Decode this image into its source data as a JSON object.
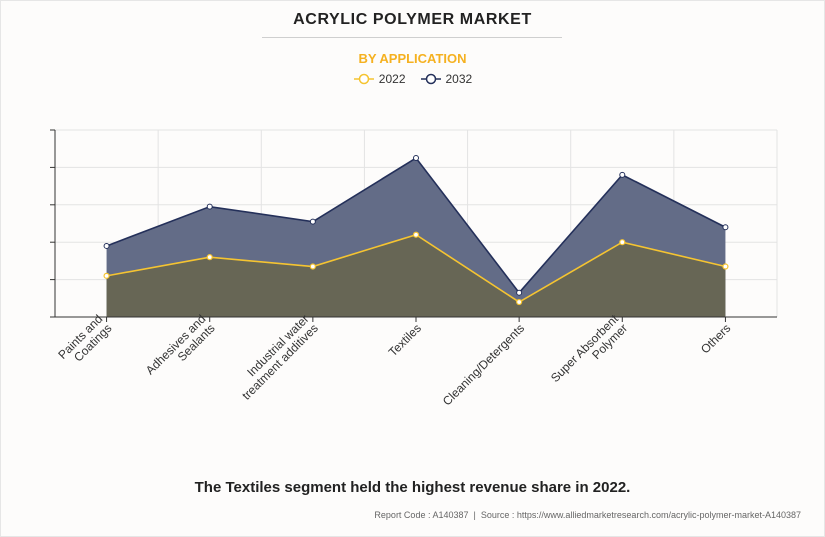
{
  "header": {
    "title": "ACRYLIC POLYMER MARKET",
    "subtitle": "BY APPLICATION"
  },
  "caption": "The Textiles segment held the highest revenue share in 2022.",
  "footer": {
    "report_code": "Report Code : A140387",
    "separator": "|",
    "source": "Source : https://www.alliedmarketresearch.com/acrylic-polymer-market-A140387"
  },
  "colors": {
    "series_2022_line": "#f5c431",
    "series_2022_fill": "#676655",
    "series_2032_line": "#24305a",
    "series_2032_fill": "#636c87",
    "accent": "#f5b120"
  },
  "chart_data": {
    "type": "area",
    "title": "ACRYLIC POLYMER MARKET",
    "subtitle": "BY APPLICATION",
    "categories": [
      [
        "Paints and",
        "Coatings"
      ],
      [
        "Adhesives and",
        "Sealants"
      ],
      [
        "Industrial water",
        "treatment additives"
      ],
      [
        "Textiles"
      ],
      [
        "Cleaning/Detergents"
      ],
      [
        "Super Absorbent",
        "Polymer"
      ],
      [
        "Others"
      ]
    ],
    "series": [
      {
        "name": "2022",
        "values": [
          1.1,
          1.6,
          1.35,
          2.2,
          0.4,
          2.0,
          1.35
        ]
      },
      {
        "name": "2032",
        "values": [
          1.9,
          2.95,
          2.55,
          4.25,
          0.65,
          3.8,
          2.4
        ]
      }
    ],
    "ylim": [
      0,
      5
    ],
    "y_ticks_count": 5,
    "grid": true,
    "legend": "top-center",
    "y_tick_labels_shown": false
  }
}
